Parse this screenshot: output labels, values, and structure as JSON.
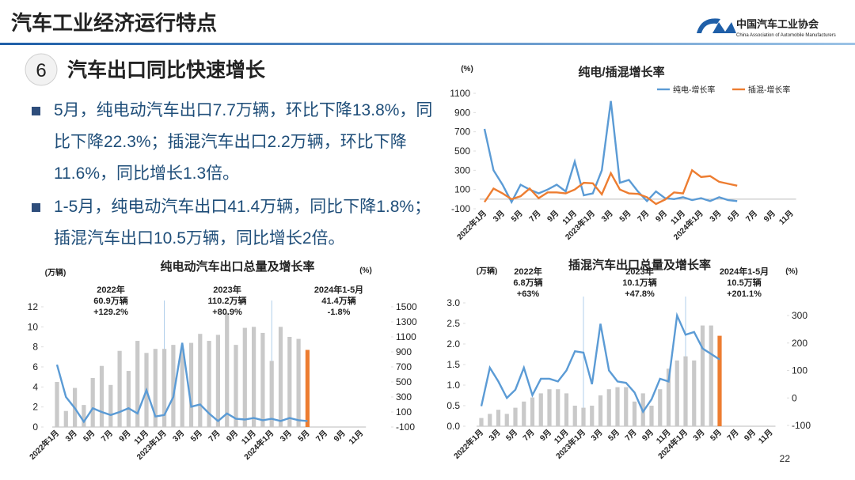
{
  "header": {
    "title": "汽车工业经济运行特点",
    "logo": "中国汽车工业协会",
    "logo_en": "China Association of Automobile Manufacturers"
  },
  "section": {
    "number": "6",
    "title": "汽车出口同比快速增长"
  },
  "bullets": [
    "5月，纯电动汽车出口7.7万辆，环比下降13.8%，同比下降22.3%；插混汽车出口2.2万辆，环比下降11.6%，同比增长1.3倍。",
    "1-5月，纯电动汽车出口41.4万辆，同比下降1.8%；插混汽车出口10.5万辆，同比增长2倍。"
  ],
  "footer": {
    "page": "22"
  },
  "chart_data": [
    {
      "type": "line",
      "title": "纯电/插混增长率",
      "y_label": "(%)",
      "legend": "top-right",
      "categories": [
        "2022年1月",
        null,
        "3月",
        null,
        "5月",
        null,
        "7月",
        null,
        "9月",
        null,
        "11月",
        null,
        "2023年1月",
        null,
        "3月",
        null,
        "5月",
        null,
        "7月",
        null,
        "9月",
        null,
        "11月",
        null,
        "2024年1月",
        null,
        "3月",
        null,
        "5月",
        null,
        "7月",
        null,
        "9月",
        null,
        "11月"
      ],
      "ylim": [
        -100,
        1100
      ],
      "yticks": [
        -100,
        100,
        300,
        500,
        700,
        900,
        1100
      ],
      "series": [
        {
          "name": "纯电-增长率",
          "color": "#5b9bd5",
          "values": [
            730,
            300,
            150,
            -30,
            150,
            100,
            60,
            100,
            150,
            80,
            390,
            40,
            60,
            300,
            1020,
            170,
            200,
            80,
            -20,
            80,
            10,
            0,
            20,
            -10,
            10,
            -20,
            20,
            -10,
            -20,
            null,
            null,
            null,
            null,
            null,
            null
          ]
        },
        {
          "name": "插混-增长率",
          "color": "#ed7d31",
          "values": [
            -30,
            110,
            60,
            0,
            30,
            110,
            10,
            70,
            70,
            60,
            100,
            170,
            165,
            50,
            270,
            100,
            60,
            55,
            20,
            -50,
            -5,
            70,
            60,
            300,
            230,
            240,
            180,
            160,
            140,
            null,
            null,
            null,
            null,
            null,
            null
          ]
        }
      ]
    },
    {
      "type": "bar_line",
      "title": "纯电动汽车出口总量及增长率",
      "y_label": "(万辆)",
      "y2_label": "(%)",
      "categories": [
        "2022年1月",
        null,
        "3月",
        null,
        "5月",
        null,
        "7月",
        null,
        "9月",
        null,
        "11月",
        null,
        "2023年1月",
        null,
        "3月",
        null,
        "5月",
        null,
        "7月",
        null,
        "9月",
        null,
        "11月",
        null,
        "2024年1月",
        null,
        "3月",
        null,
        "5月",
        null,
        "7月",
        null,
        "9月",
        null,
        "11月"
      ],
      "ylim": [
        0,
        12
      ],
      "yticks": [
        0,
        2,
        4,
        6,
        8,
        10,
        12
      ],
      "y2lim": [
        -100,
        1500
      ],
      "y2ticks": [
        -100,
        100,
        300,
        500,
        700,
        900,
        1100,
        1300,
        1500
      ],
      "series": [
        {
          "type": "bar",
          "colors": [
            "#c9c9c9",
            "#c9c9c9",
            "#c9c9c9",
            "#c9c9c9",
            "#c9c9c9",
            "#c9c9c9",
            "#c9c9c9",
            "#c9c9c9",
            "#c9c9c9",
            "#c9c9c9",
            "#c9c9c9",
            "#c9c9c9",
            "#c9c9c9",
            "#c9c9c9",
            "#c9c9c9",
            "#c9c9c9",
            "#c9c9c9",
            "#c9c9c9",
            "#c9c9c9",
            "#c9c9c9",
            "#c9c9c9",
            "#c9c9c9",
            "#c9c9c9",
            "#c9c9c9",
            "#c9c9c9",
            "#c9c9c9",
            "#c9c9c9",
            "#c9c9c9",
            "#ed7d31",
            "#c9c9c9",
            "#c9c9c9",
            "#c9c9c9",
            "#c9c9c9",
            "#c9c9c9",
            "#c9c9c9"
          ],
          "values": [
            4.5,
            1.6,
            3.9,
            2.2,
            4.9,
            6.1,
            4.2,
            7.6,
            5.6,
            8.6,
            7.4,
            7.8,
            7.8,
            8.2,
            7.8,
            8.4,
            9.3,
            8.6,
            9.2,
            11.4,
            8.2,
            9.9,
            10.0,
            9.4,
            6.6,
            10.0,
            9.0,
            8.8,
            7.7,
            null,
            null,
            null,
            null,
            null,
            null
          ]
        },
        {
          "type": "line",
          "axis": "y2",
          "color": "#5b9bd5",
          "values": [
            730,
            300,
            150,
            -30,
            150,
            100,
            60,
            100,
            150,
            80,
            390,
            40,
            60,
            300,
            1020,
            170,
            200,
            80,
            -20,
            80,
            10,
            0,
            20,
            -10,
            10,
            -20,
            20,
            -10,
            -20,
            null,
            null,
            null,
            null,
            null,
            null
          ]
        }
      ],
      "annotations": [
        {
          "lines": [
            "2022年",
            "60.9万辆",
            "+129.2%"
          ],
          "colors": [
            "#222",
            "#222",
            "#222"
          ]
        },
        {
          "lines": [
            "2023年",
            "110.2万辆",
            "+80.9%"
          ],
          "colors": [
            "#222",
            "#222",
            "#222"
          ]
        },
        {
          "lines": [
            "2024年1-5月",
            "41.4万辆",
            "-1.8%"
          ],
          "colors": [
            "#222",
            "#222",
            "#e00000"
          ]
        }
      ]
    },
    {
      "type": "bar_line",
      "title": "插混汽车出口总量及增长率",
      "y_label": "(万辆)",
      "y2_label": "(%)",
      "categories": [
        "2022年1月",
        null,
        "3月",
        null,
        "5月",
        null,
        "7月",
        null,
        "9月",
        null,
        "11月",
        null,
        "2023年1月",
        null,
        "3月",
        null,
        "5月",
        null,
        "7月",
        null,
        "9月",
        null,
        "11月",
        null,
        "2024年1月",
        null,
        "3月",
        null,
        "5月",
        null,
        "7月",
        null,
        "9月",
        null,
        "11月"
      ],
      "ylim": [
        0,
        3
      ],
      "yticks": [
        {
          "value": 0,
          "label": "0.0"
        },
        0.5,
        {
          "value": 1,
          "label": "1.0"
        },
        1.5,
        {
          "value": 2,
          "label": "2.0"
        },
        2.5,
        {
          "value": 3,
          "label": "3.0"
        }
      ],
      "y2lim": [
        -100,
        300
      ],
      "y2ticks": [
        -100,
        0,
        100,
        200,
        300
      ],
      "series": [
        {
          "type": "bar",
          "colors": [
            "#c9c9c9",
            "#c9c9c9",
            "#c9c9c9",
            "#c9c9c9",
            "#c9c9c9",
            "#c9c9c9",
            "#c9c9c9",
            "#c9c9c9",
            "#c9c9c9",
            "#c9c9c9",
            "#c9c9c9",
            "#c9c9c9",
            "#c9c9c9",
            "#c9c9c9",
            "#c9c9c9",
            "#c9c9c9",
            "#c9c9c9",
            "#c9c9c9",
            "#c9c9c9",
            "#c9c9c9",
            "#c9c9c9",
            "#c9c9c9",
            "#c9c9c9",
            "#c9c9c9",
            "#c9c9c9",
            "#c9c9c9",
            "#c9c9c9",
            "#c9c9c9",
            "#ed7d31",
            "#c9c9c9",
            "#c9c9c9",
            "#c9c9c9",
            "#c9c9c9",
            "#c9c9c9",
            "#c9c9c9"
          ],
          "values": [
            0.2,
            0.3,
            0.4,
            0.3,
            0.45,
            0.6,
            0.7,
            0.8,
            0.9,
            0.9,
            0.8,
            0.5,
            0.45,
            0.5,
            0.75,
            0.9,
            0.95,
            0.95,
            0.6,
            0.8,
            0.5,
            0.9,
            1.4,
            1.6,
            1.7,
            1.6,
            2.45,
            2.45,
            2.2,
            null,
            null,
            null,
            null,
            null,
            null
          ]
        },
        {
          "type": "line",
          "axis": "y2",
          "color": "#5b9bd5",
          "values": [
            -30,
            110,
            60,
            0,
            30,
            110,
            10,
            70,
            70,
            60,
            100,
            170,
            165,
            50,
            270,
            100,
            60,
            55,
            20,
            -50,
            -5,
            70,
            60,
            300,
            230,
            240,
            180,
            160,
            140,
            null,
            null,
            null,
            null,
            null,
            null
          ]
        }
      ],
      "annotations": [
        {
          "lines": [
            "2022年",
            "6.8万辆",
            "+63%"
          ],
          "colors": [
            "#222",
            "#222",
            "#222"
          ]
        },
        {
          "lines": [
            "2023年",
            "10.1万辆",
            "+47.8%"
          ],
          "colors": [
            "#222",
            "#222",
            "#222"
          ]
        },
        {
          "lines": [
            "2024年1-5月",
            "10.5万辆",
            "+201.1%"
          ],
          "colors": [
            "#222",
            "#222",
            "#222"
          ]
        }
      ]
    }
  ]
}
